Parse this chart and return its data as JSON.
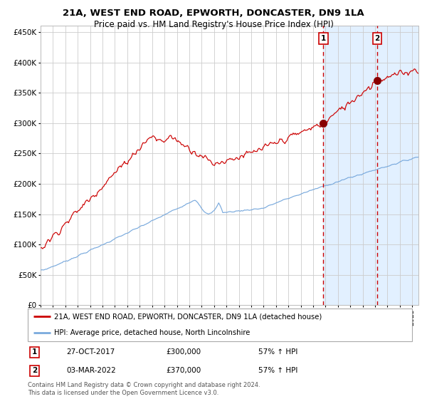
{
  "title": "21A, WEST END ROAD, EPWORTH, DONCASTER, DN9 1LA",
  "subtitle": "Price paid vs. HM Land Registry's House Price Index (HPI)",
  "ylim": [
    0,
    460000
  ],
  "yticks": [
    0,
    50000,
    100000,
    150000,
    200000,
    250000,
    300000,
    350000,
    400000,
    450000
  ],
  "xlim_start": 1995.0,
  "xlim_end": 2025.5,
  "red_line_color": "#cc0000",
  "blue_line_color": "#7aaadd",
  "vline_color": "#cc0000",
  "shade_color": "#ddeeff",
  "marker_color": "#880000",
  "point1_x": 2017.83,
  "point1_y": 300000,
  "point2_x": 2022.17,
  "point2_y": 370000,
  "legend_red_label": "21A, WEST END ROAD, EPWORTH, DONCASTER, DN9 1LA (detached house)",
  "legend_blue_label": "HPI: Average price, detached house, North Lincolnshire",
  "table_row1": [
    "1",
    "27-OCT-2017",
    "£300,000",
    "57% ↑ HPI"
  ],
  "table_row2": [
    "2",
    "03-MAR-2022",
    "£370,000",
    "57% ↑ HPI"
  ],
  "footnote": "Contains HM Land Registry data © Crown copyright and database right 2024.\nThis data is licensed under the Open Government Licence v3.0.",
  "bg_color": "#ffffff",
  "grid_color": "#cccccc",
  "title_fontsize": 9.5,
  "subtitle_fontsize": 8.5,
  "label1_text": "1",
  "label2_text": "2"
}
